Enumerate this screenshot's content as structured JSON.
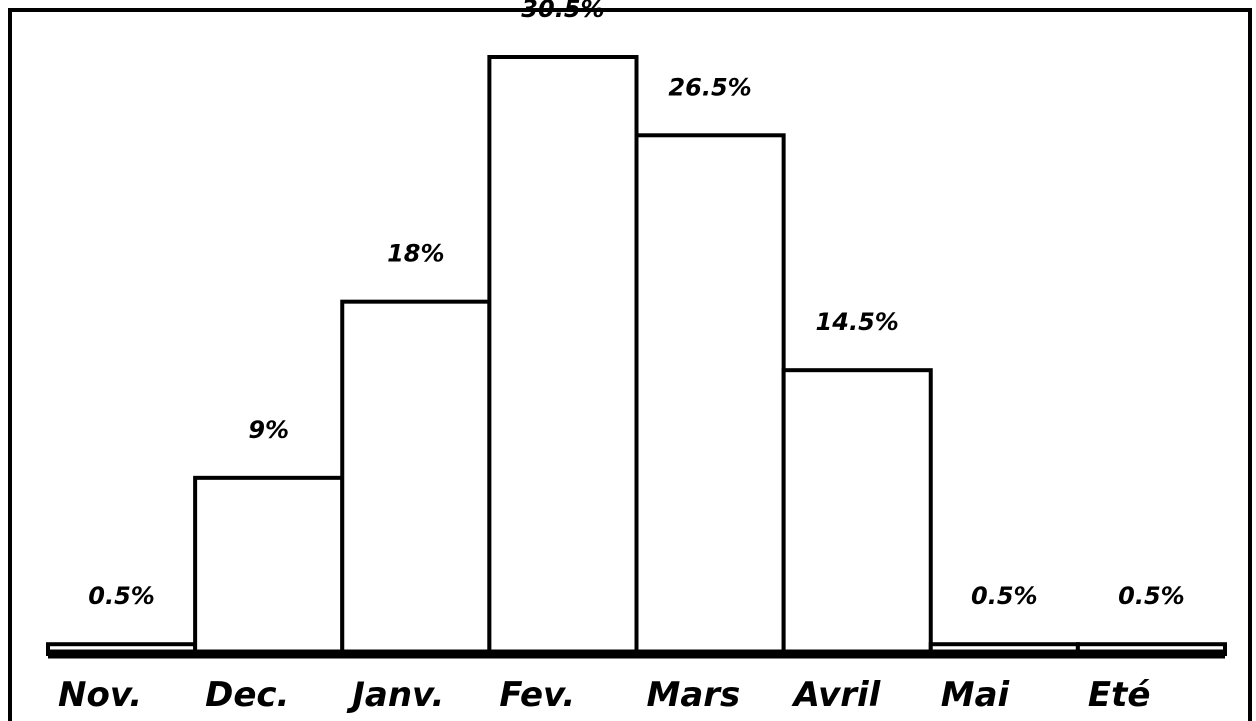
{
  "chart_data": {
    "type": "bar",
    "categories": [
      "Nov.",
      "Dec.",
      "Janv.",
      "Fev.",
      "Mars",
      "Avril",
      "Mai",
      "Eté"
    ],
    "values": [
      0.5,
      9,
      18,
      30.5,
      26.5,
      14.5,
      0.5,
      0.5
    ],
    "value_labels": [
      "0.5%",
      "9%",
      "18%",
      "30.5%",
      "26.5%",
      "14.5%",
      "0.5%",
      "0.5%"
    ],
    "color": "#ffffff"
  }
}
